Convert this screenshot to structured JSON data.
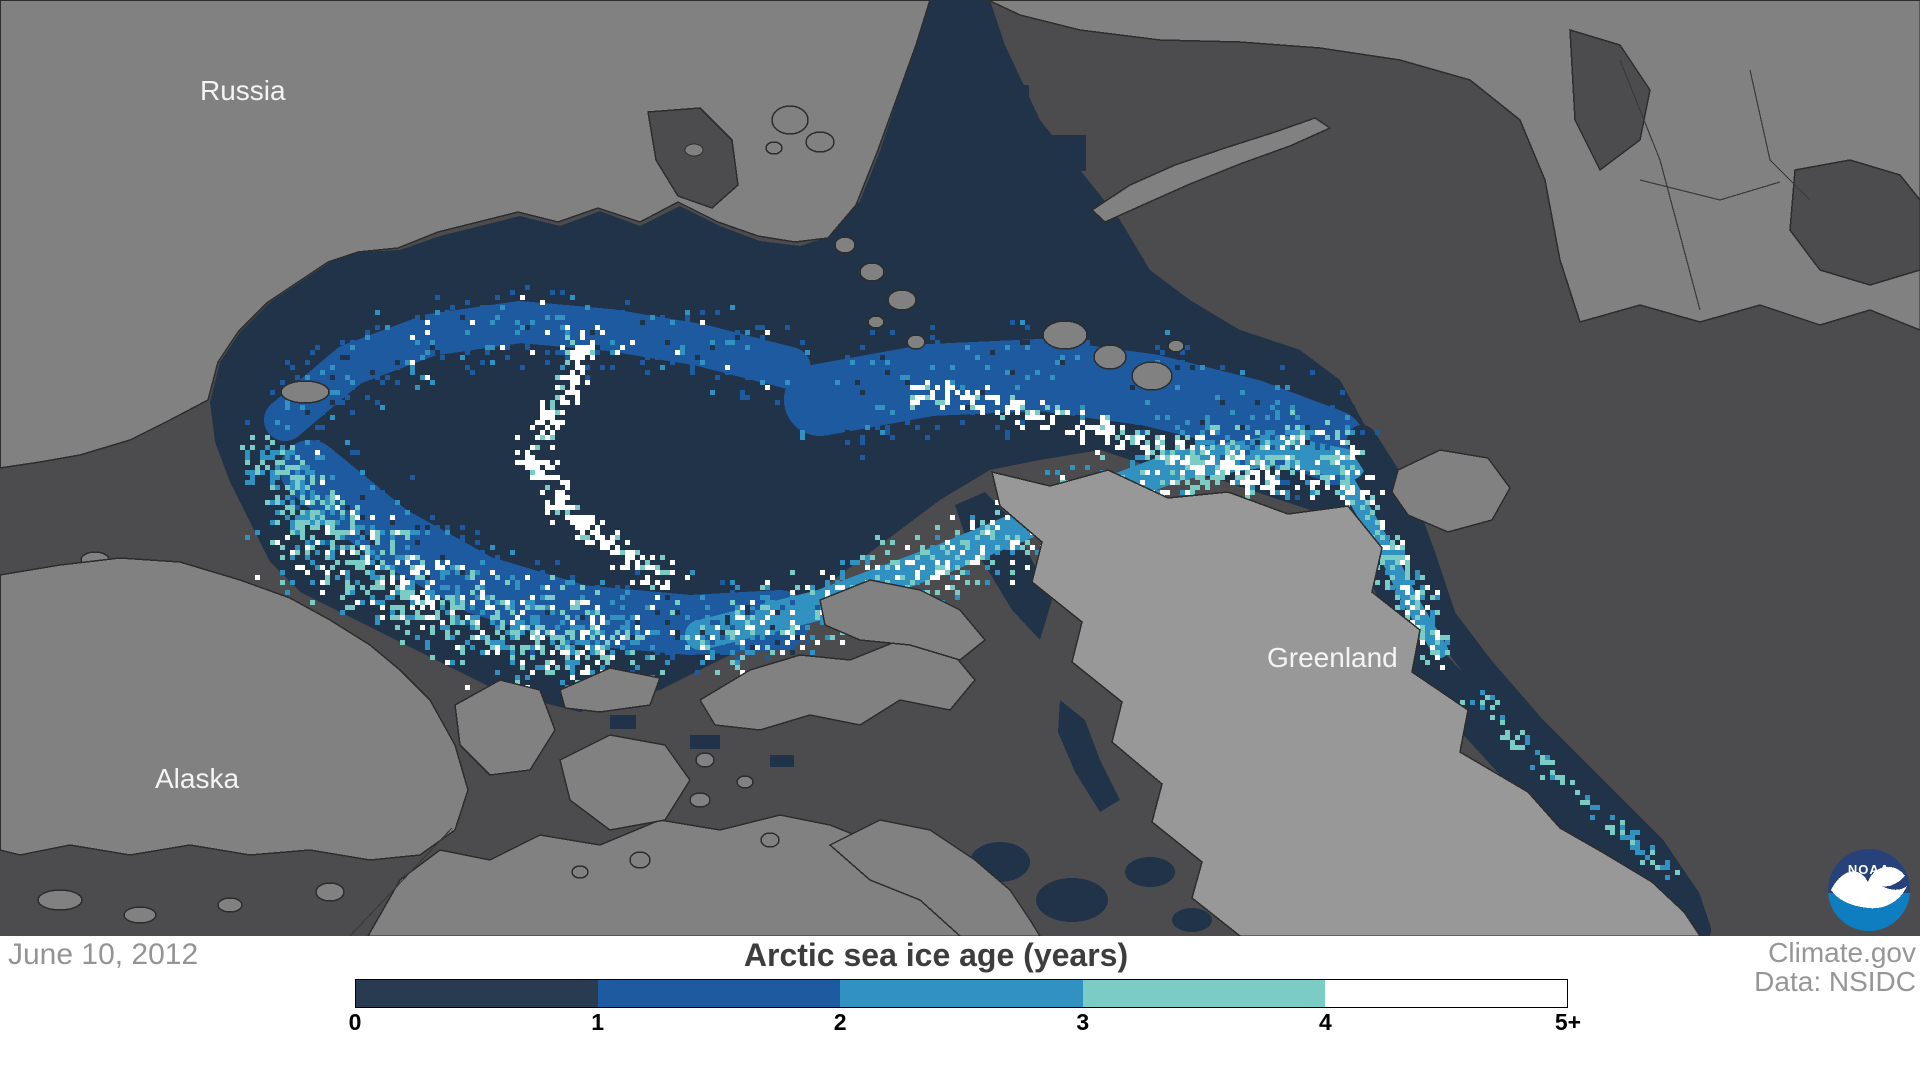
{
  "map": {
    "labels": {
      "russia": "Russia",
      "alaska": "Alaska",
      "greenland": "Greenland"
    },
    "date": "June 10, 2012",
    "noaa_logo_text": "NOAA"
  },
  "legend": {
    "title": "Arctic sea ice age (years)",
    "ticks": [
      "0",
      "1",
      "2",
      "3",
      "4",
      "5+"
    ],
    "segments": [
      {
        "range": "0-1",
        "color": "#293b50"
      },
      {
        "range": "1-2",
        "color": "#1e5aa0"
      },
      {
        "range": "2-3",
        "color": "#3191c1"
      },
      {
        "range": "3-4",
        "color": "#7bccc5"
      },
      {
        "range": "4-5+",
        "color": "#ffffff"
      }
    ]
  },
  "attribution": {
    "source": "Climate.gov",
    "data_source": "Data: NSIDC"
  },
  "colors": {
    "ocean": "#4c4c4e",
    "land": "#818181",
    "greenland_land": "#989898",
    "coast_stroke": "#2d2d2d",
    "ice_0_1": "#203349",
    "ice_1_2": "#1e5aa0",
    "ice_2_3": "#3191c1",
    "ice_3_4": "#7bccc5",
    "ice_5plus": "#ffffff",
    "noaa_logo_top": "#27417a",
    "noaa_logo_bottom": "#0e7ec0"
  }
}
